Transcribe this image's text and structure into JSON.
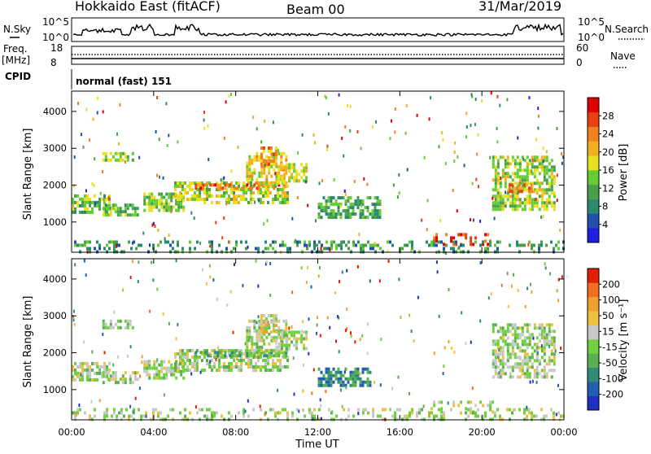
{
  "header": {
    "station": "Hokkaido East (fitACF)",
    "beam": "Beam 00",
    "date": "31/Mar/2019"
  },
  "top_panels": {
    "nsky_label": "N.Sky",
    "nsky_ticks": [
      "10^5",
      "10^0"
    ],
    "nsearch_label": "N.Search",
    "nsearch_ticks": [
      "10^5",
      "10^0"
    ],
    "freq_label": "Freq.",
    "freq_unit": "[MHz]",
    "freq_ticks": [
      "18",
      "8"
    ],
    "nave_label": "Nave",
    "nave_ticks": [
      "60",
      "0"
    ],
    "cpid_label": "CPID",
    "cpid_text": "normal (fast) 151"
  },
  "colors": {
    "power": [
      "#1f1fe0",
      "#2050a8",
      "#2a8a70",
      "#4aa04a",
      "#66cc33",
      "#e8e020",
      "#f0b020",
      "#f08020",
      "#e84010",
      "#e00000"
    ],
    "velocity": [
      "#2030c0",
      "#2060b0",
      "#2f8a78",
      "#5ab050",
      "#70d040",
      "#c8c8c8",
      "#f0c040",
      "#f0a030",
      "#f07020",
      "#e02000"
    ]
  },
  "chart_data": [
    {
      "type": "heatmap",
      "name": "power-panel",
      "ylabel": "Slant Range [km]",
      "xlim": [
        "00:00",
        "24:00"
      ],
      "ylim": [
        180,
        4550
      ],
      "yticks": [
        1000,
        2000,
        3000,
        4000
      ],
      "colorbar": {
        "label": "Power [dB]",
        "range": [
          0,
          30
        ],
        "ticks": [
          "4",
          "8",
          "12",
          "16",
          "20",
          "24",
          "28"
        ]
      },
      "regions": [
        {
          "t0": 0.0,
          "t1": 1.8,
          "r0": 1250,
          "r1": 1750,
          "level": 0.4
        },
        {
          "t0": 1.5,
          "t1": 3.2,
          "r0": 1150,
          "r1": 1500,
          "level": 0.42
        },
        {
          "t0": 3.5,
          "t1": 5.5,
          "r0": 1300,
          "r1": 1800,
          "level": 0.45
        },
        {
          "t0": 5.0,
          "t1": 10.5,
          "r0": 1500,
          "r1": 2100,
          "level": 0.5
        },
        {
          "t0": 6.0,
          "t1": 10.5,
          "r0": 1900,
          "r1": 2050,
          "level": 0.8
        },
        {
          "t0": 8.5,
          "t1": 10.5,
          "r0": 2100,
          "r1": 2900,
          "level": 0.6
        },
        {
          "t0": 9.2,
          "t1": 10.0,
          "r0": 2600,
          "r1": 3050,
          "level": 0.7
        },
        {
          "t0": 10.2,
          "t1": 11.5,
          "r0": 2100,
          "r1": 2600,
          "level": 0.55
        },
        {
          "t0": 12.0,
          "t1": 15.0,
          "r0": 1150,
          "r1": 1700,
          "level": 0.35
        },
        {
          "t0": 17.5,
          "t1": 20.5,
          "r0": 400,
          "r1": 700,
          "level": 0.85
        },
        {
          "t0": 0.0,
          "t1": 24.0,
          "r0": 180,
          "r1": 500,
          "level": 0.3
        },
        {
          "t0": 20.5,
          "t1": 23.5,
          "r0": 1300,
          "r1": 2800,
          "level": 0.5
        },
        {
          "t0": 21.3,
          "t1": 22.6,
          "r0": 1800,
          "r1": 2050,
          "level": 0.75
        },
        {
          "t0": 1.5,
          "t1": 3.0,
          "r0": 2700,
          "r1": 2900,
          "level": 0.45
        }
      ]
    },
    {
      "type": "heatmap",
      "name": "velocity-panel",
      "xlabel": "Time UT",
      "ylabel": "Slant Range [km]",
      "xlim": [
        "00:00",
        "24:00"
      ],
      "ylim": [
        180,
        4550
      ],
      "xticks": [
        "00:00",
        "04:00",
        "08:00",
        "12:00",
        "16:00",
        "20:00",
        "00:00"
      ],
      "yticks": [
        1000,
        2000,
        3000,
        4000
      ],
      "colorbar": {
        "label": "Velocity [m s⁻¹]",
        "ticks": [
          "-200",
          "-100",
          "-50",
          "-15",
          "15",
          "50",
          "100",
          "200"
        ]
      },
      "regions": [
        {
          "t0": 0.0,
          "t1": 1.8,
          "r0": 1250,
          "r1": 1750,
          "level": 0.5
        },
        {
          "t0": 1.5,
          "t1": 3.2,
          "r0": 1150,
          "r1": 1500,
          "level": 0.5
        },
        {
          "t0": 3.5,
          "t1": 5.5,
          "r0": 1300,
          "r1": 1800,
          "level": 0.5
        },
        {
          "t0": 5.0,
          "t1": 10.5,
          "r0": 1500,
          "r1": 2100,
          "level": 0.5
        },
        {
          "t0": 6.0,
          "t1": 10.5,
          "r0": 1900,
          "r1": 2050,
          "level": 0.35
        },
        {
          "t0": 8.5,
          "t1": 10.5,
          "r0": 2100,
          "r1": 2900,
          "level": 0.5
        },
        {
          "t0": 9.2,
          "t1": 10.0,
          "r0": 2600,
          "r1": 3050,
          "level": 0.6
        },
        {
          "t0": 10.2,
          "t1": 11.5,
          "r0": 2100,
          "r1": 2600,
          "level": 0.5
        },
        {
          "t0": 12.0,
          "t1": 14.5,
          "r0": 1150,
          "r1": 1600,
          "level": 0.25
        },
        {
          "t0": 17.5,
          "t1": 20.5,
          "r0": 400,
          "r1": 700,
          "level": 0.5
        },
        {
          "t0": 0.0,
          "t1": 24.0,
          "r0": 180,
          "r1": 500,
          "level": 0.5
        },
        {
          "t0": 20.5,
          "t1": 23.5,
          "r0": 1300,
          "r1": 2800,
          "level": 0.5
        },
        {
          "t0": 1.5,
          "t1": 3.0,
          "r0": 2700,
          "r1": 2900,
          "level": 0.5
        }
      ]
    }
  ]
}
